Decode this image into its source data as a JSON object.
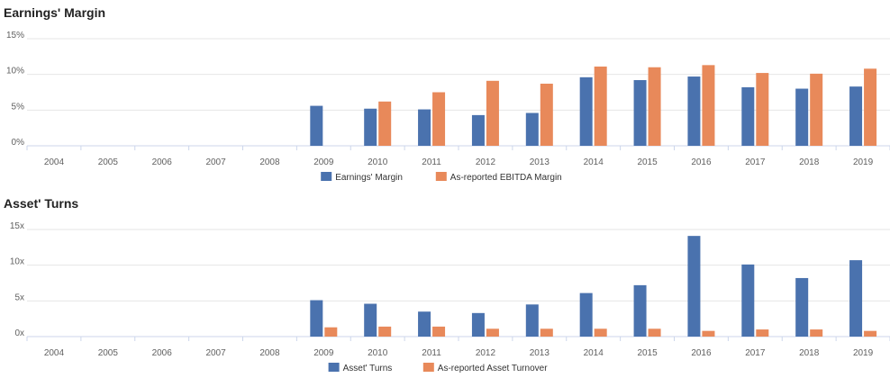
{
  "colors": {
    "series_a": "#4a72ae",
    "series_b": "#e8895a",
    "grid": "#e6e6e6",
    "axis": "#ccd6eb"
  },
  "chart_data": [
    {
      "type": "bar",
      "title": "Earnings' Margin",
      "categories": [
        "2004",
        "2005",
        "2006",
        "2007",
        "2008",
        "2009",
        "2010",
        "2011",
        "2012",
        "2013",
        "2014",
        "2015",
        "2016",
        "2017",
        "2018",
        "2019"
      ],
      "series": [
        {
          "name": "Earnings' Margin",
          "values": [
            null,
            null,
            null,
            null,
            null,
            5.6,
            5.2,
            5.1,
            4.3,
            4.6,
            9.6,
            9.2,
            9.7,
            8.2,
            8.0,
            8.3
          ]
        },
        {
          "name": "As-reported EBITDA Margin",
          "values": [
            null,
            null,
            null,
            null,
            null,
            null,
            6.2,
            7.5,
            9.1,
            8.7,
            11.1,
            11.0,
            11.3,
            10.2,
            10.1,
            10.8
          ]
        }
      ],
      "yticks": [
        "0%",
        "5%",
        "10%",
        "15%"
      ],
      "ylim": [
        0,
        15
      ],
      "grid": true,
      "legend": "bottom-center"
    },
    {
      "type": "bar",
      "title": "Asset' Turns",
      "categories": [
        "2004",
        "2005",
        "2006",
        "2007",
        "2008",
        "2009",
        "2010",
        "2011",
        "2012",
        "2013",
        "2014",
        "2015",
        "2016",
        "2017",
        "2018",
        "2019"
      ],
      "series": [
        {
          "name": "Asset' Turns",
          "values": [
            null,
            null,
            null,
            null,
            null,
            5.1,
            4.6,
            3.5,
            3.3,
            4.5,
            6.1,
            7.2,
            14.1,
            10.1,
            8.2,
            10.7
          ]
        },
        {
          "name": "As-reported Asset Turnover",
          "values": [
            null,
            null,
            null,
            null,
            null,
            1.3,
            1.4,
            1.4,
            1.1,
            1.1,
            1.1,
            1.1,
            0.8,
            1.0,
            1.0,
            0.8
          ]
        }
      ],
      "yticks": [
        "0x",
        "5x",
        "10x",
        "15x"
      ],
      "ylim": [
        0,
        15
      ],
      "grid": true,
      "legend": "bottom-center"
    }
  ]
}
